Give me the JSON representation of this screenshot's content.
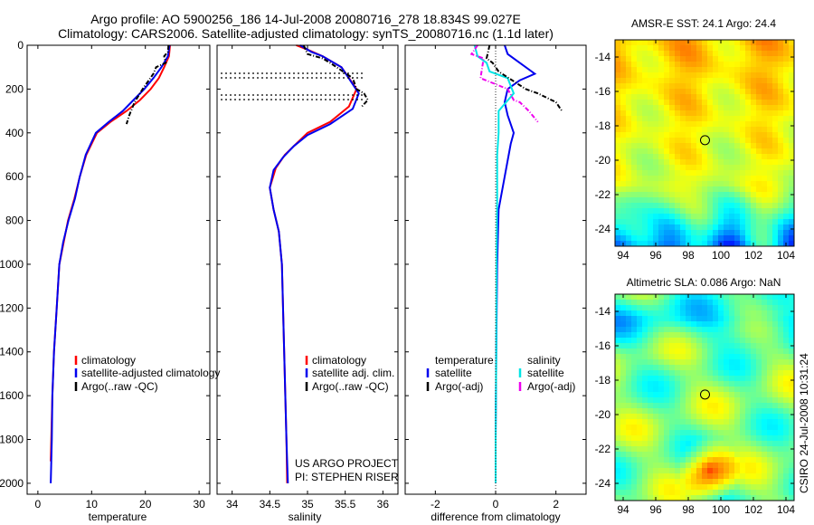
{
  "header": {
    "line1": "Argo profile: AO 5900256_186 14-Jul-2008 20080716_278 18.834S 99.027E",
    "line2": "Climatology: CARS2006. Satellite-adjusted climatology: synTS_20080716.nc (1.1d later)"
  },
  "chart_data": [
    {
      "type": "line",
      "panel": "temperature",
      "xlabel": "temperature",
      "ylabel": "",
      "xlim": [
        -2,
        32
      ],
      "ylim": [
        2050,
        0
      ],
      "y_inverted": true,
      "xticks": [
        0,
        10,
        20,
        30
      ],
      "yticks": [
        0,
        200,
        400,
        600,
        800,
        1000,
        1200,
        1400,
        1600,
        1800,
        2000
      ],
      "legend": {
        "position": "lower-right",
        "items": [
          "climatology",
          "satellite-adjusted climatology",
          "Argo(..raw -QC)"
        ]
      },
      "series": [
        {
          "name": "climatology",
          "color": "#ff0000",
          "style": "solid",
          "x": [
            24.6,
            24.4,
            23.5,
            22.5,
            21.0,
            19.0,
            16.5,
            13.5,
            11.0,
            9.0,
            7.8,
            6.8,
            5.6,
            4.8,
            4.0,
            3.5,
            3.0,
            2.7,
            2.4
          ],
          "y": [
            0,
            50,
            100,
            150,
            200,
            250,
            300,
            350,
            400,
            500,
            600,
            700,
            800,
            900,
            1000,
            1200,
            1400,
            1600,
            1900
          ]
        },
        {
          "name": "satellite-adjusted climatology",
          "color": "#0000ee",
          "style": "solid",
          "x": [
            24.5,
            24.2,
            23.0,
            21.5,
            19.8,
            17.8,
            15.8,
            13.2,
            10.8,
            8.9,
            7.8,
            6.9,
            5.7,
            4.7,
            4.0,
            3.5,
            3.0,
            2.7,
            2.6,
            2.4
          ],
          "y": [
            0,
            50,
            100,
            150,
            200,
            250,
            300,
            350,
            400,
            500,
            600,
            700,
            800,
            900,
            1000,
            1200,
            1400,
            1600,
            1800,
            2000
          ]
        },
        {
          "name": "Argo(..raw -QC)",
          "color": "#000000",
          "style": "dashdot",
          "x": [
            24.3,
            24.2,
            23.5,
            23.8,
            22.0,
            21.5,
            19.5,
            18.0,
            17.0,
            16.5
          ],
          "y": [
            0,
            30,
            50,
            80,
            100,
            130,
            200,
            260,
            320,
            360
          ]
        }
      ]
    },
    {
      "type": "line",
      "panel": "salinity",
      "xlabel": "salinity",
      "ylabel": "",
      "xlim": [
        33.8,
        36.2
      ],
      "ylim": [
        2050,
        0
      ],
      "y_inverted": true,
      "xticks": [
        34,
        34.5,
        35,
        35.5,
        36
      ],
      "legend": {
        "position": "lower-right",
        "items": [
          "climatology",
          "satellite adj. clim.",
          "Argo(..raw -QC)"
        ]
      },
      "annotations": [
        "US ARGO PROJECT",
        "PI: STEPHEN RISER"
      ],
      "series": [
        {
          "name": "climatology",
          "color": "#ff0000",
          "style": "solid",
          "x": [
            34.85,
            35.0,
            35.2,
            35.45,
            35.65,
            35.55,
            35.3,
            35.0,
            34.85,
            34.7,
            34.58,
            34.5,
            34.55,
            34.62,
            34.66,
            34.69,
            34.72,
            34.73
          ],
          "y": [
            0,
            20,
            50,
            100,
            200,
            280,
            350,
            400,
            450,
            500,
            560,
            650,
            750,
            850,
            1000,
            1400,
            1800,
            2000
          ]
        },
        {
          "name": "satellite adj. clim.",
          "color": "#0000ee",
          "style": "solid",
          "x": [
            34.9,
            35.05,
            35.2,
            35.45,
            35.68,
            35.6,
            35.3,
            35.0,
            34.82,
            34.68,
            34.55,
            34.5,
            34.55,
            34.62,
            34.66,
            34.69,
            34.72,
            34.74
          ],
          "y": [
            0,
            30,
            50,
            100,
            220,
            290,
            360,
            410,
            460,
            510,
            570,
            650,
            750,
            850,
            1000,
            1400,
            1800,
            2000
          ]
        },
        {
          "name": "Argo(..raw -QC)",
          "color": "#000000",
          "style": "dashdot",
          "x": [
            34.95,
            35.0,
            35.2,
            35.3,
            35.6,
            35.65,
            35.75,
            35.8,
            35.72
          ],
          "y": [
            0,
            40,
            60,
            80,
            150,
            200,
            220,
            250,
            280
          ]
        }
      ]
    },
    {
      "type": "line",
      "panel": "difference",
      "xlabel": "difference from climatology",
      "ylabel": "",
      "xlim": [
        -3,
        3
      ],
      "ylim": [
        2050,
        0
      ],
      "y_inverted": true,
      "xticks": [
        -2,
        0,
        2
      ],
      "legend": {
        "position": "lower-right",
        "items": [
          "temperature",
          "salinity",
          "satellite",
          "satellite",
          "Argo(-adj)",
          "Argo(-adj)"
        ]
      },
      "series": [
        {
          "name": "satellite (temperature)",
          "color": "#0000ee",
          "style": "solid",
          "x": [
            0.3,
            0.4,
            0.8,
            1.3,
            0.8,
            0.4,
            0.3,
            0.4,
            0.6,
            0.5,
            0.3,
            0.1,
            0.05,
            0.02,
            0.0,
            0.0
          ],
          "y": [
            0,
            40,
            80,
            130,
            160,
            200,
            260,
            320,
            400,
            450,
            600,
            750,
            1000,
            1400,
            1800,
            2000
          ]
        },
        {
          "name": "satellite (salinity)",
          "color": "#00e5e5",
          "style": "solid",
          "x": [
            -0.7,
            -0.6,
            -0.3,
            -0.2,
            0.4,
            0.6,
            0.1,
            0.1,
            0.05,
            0.05,
            0.03,
            0.02,
            0.0,
            0.0
          ],
          "y": [
            0,
            50,
            80,
            120,
            150,
            220,
            300,
            400,
            500,
            700,
            1000,
            1400,
            1800,
            2000
          ]
        },
        {
          "name": "Argo(-adj) (temperature)",
          "color": "#000000",
          "style": "dashdot",
          "x": [
            -0.2,
            -0.3,
            -0.1,
            0.1,
            1.0,
            1.4,
            2.0,
            2.2
          ],
          "y": [
            0,
            60,
            80,
            120,
            200,
            220,
            260,
            300
          ]
        },
        {
          "name": "Argo(-adj) (salinity)",
          "color": "#ee00ee",
          "style": "dashdot",
          "x": [
            -0.6,
            -0.8,
            -0.4,
            -0.5,
            0.4,
            0.6,
            0.8,
            1.1,
            1.4
          ],
          "y": [
            0,
            40,
            60,
            150,
            200,
            250,
            260,
            300,
            350
          ]
        }
      ]
    },
    {
      "type": "heatmap",
      "panel": "sst-map",
      "title": "AMSR-E SST: 24.1 Argo: 24.4",
      "xlim": [
        93.5,
        104.5
      ],
      "ylim": [
        -25,
        -13
      ],
      "xticks": [
        94,
        96,
        98,
        100,
        102,
        104
      ],
      "yticks": [
        -14,
        -16,
        -18,
        -20,
        -22,
        -24
      ],
      "marker": {
        "lon": 99.027,
        "lat": -18.834
      },
      "colormap": "jet"
    },
    {
      "type": "heatmap",
      "panel": "sla-map",
      "title": "Altimetric SLA: 0.086 Argo: NaN",
      "xlim": [
        93.5,
        104.5
      ],
      "ylim": [
        -25,
        -13
      ],
      "xticks": [
        94,
        96,
        98,
        100,
        102,
        104
      ],
      "yticks": [
        -14,
        -16,
        -18,
        -20,
        -22,
        -24
      ],
      "marker": {
        "lon": 99.027,
        "lat": -18.834
      },
      "colormap": "jet"
    }
  ],
  "footer": {
    "credit": "CSIRO 24-Jul-2008 10:31:24"
  },
  "colors": {
    "climatology": "#ff0000",
    "satellite": "#0000ee",
    "argo": "#000000",
    "sat_salinity": "#00e5e5",
    "argo_salinity": "#ee00ee"
  }
}
